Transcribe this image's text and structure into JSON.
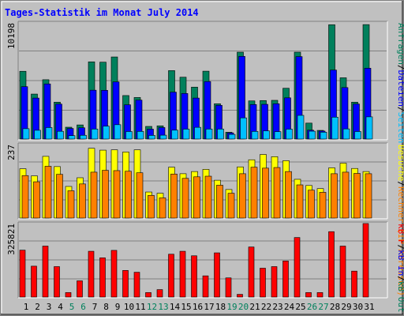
{
  "title": "Tages-Statistik im Monat July 2014",
  "colors": {
    "title": "#0000ff",
    "weekday_label": "#000000",
    "weekend_label": "#00805c",
    "anfragen": "#00805c",
    "dateien": "#0000ff",
    "seiten": "#00c0ff",
    "rechner": "#ff8000",
    "besuche": "#ffff00",
    "kb_f": "#ff0000",
    "kb_in": "#0000ff",
    "kb_out": "#00805c"
  },
  "chart_data": [
    {
      "type": "bar",
      "name": "panel-requests",
      "ytick": "10198",
      "ylim": [
        0,
        10198
      ],
      "legend": [
        {
          "text": "Anfragen",
          "color": "#00805c"
        },
        {
          "text": "/",
          "color": "#000000"
        },
        {
          "text": "Dateien",
          "color": "#0000ff"
        },
        {
          "text": "/",
          "color": "#000000"
        },
        {
          "text": "Seiten",
          "color": "#00c0ff"
        }
      ],
      "categories": [
        "1",
        "2",
        "3",
        "4",
        "5",
        "6",
        "7",
        "8",
        "9",
        "10",
        "11",
        "12",
        "13",
        "14",
        "15",
        "16",
        "17",
        "18",
        "19",
        "20",
        "21",
        "22",
        "23",
        "24",
        "25",
        "26",
        "27",
        "28",
        "29",
        "30",
        "31"
      ],
      "series": [
        {
          "name": "Anfragen",
          "values": [
            5950,
            3950,
            5210,
            3240,
            1040,
            1240,
            6780,
            6750,
            7210,
            3820,
            3650,
            1110,
            1160,
            6010,
            5430,
            4560,
            5960,
            3100,
            600,
            7630,
            3350,
            3380,
            3400,
            4460,
            7630,
            1400,
            760,
            10040,
            5380,
            3240,
            10050
          ]
        },
        {
          "name": "Dateien",
          "values": [
            4600,
            3600,
            4840,
            3070,
            930,
            990,
            4290,
            4280,
            5020,
            3010,
            3420,
            870,
            1010,
            4120,
            4000,
            3600,
            5050,
            2960,
            540,
            7260,
            3030,
            3050,
            3100,
            3620,
            7240,
            780,
            700,
            6060,
            4520,
            3080,
            6220
          ]
        },
        {
          "name": "Seiten",
          "values": [
            910,
            770,
            1010,
            680,
            300,
            330,
            880,
            1130,
            1260,
            660,
            670,
            320,
            340,
            780,
            870,
            1030,
            880,
            880,
            410,
            1860,
            670,
            720,
            650,
            870,
            2080,
            690,
            600,
            1920,
            890,
            660,
            1950
          ]
        }
      ]
    },
    {
      "type": "bar",
      "name": "panel-visits",
      "ytick": "237",
      "ylim": [
        0,
        237
      ],
      "legend": [
        {
          "text": "Besuche",
          "color": "#ffff00"
        },
        {
          "text": "/",
          "color": "#000000"
        },
        {
          "text": "Rechner (IP-Adressen)",
          "color": "#ff8000"
        }
      ],
      "categories": [
        "1",
        "2",
        "3",
        "4",
        "5",
        "6",
        "7",
        "8",
        "9",
        "10",
        "11",
        "12",
        "13",
        "14",
        "15",
        "16",
        "17",
        "18",
        "19",
        "20",
        "21",
        "22",
        "23",
        "24",
        "25",
        "26",
        "27",
        "28",
        "29",
        "30",
        "31"
      ],
      "series": [
        {
          "name": "Besuche",
          "values": [
            159,
            136,
            199,
            166,
            102,
            130,
            225,
            219,
            220,
            213,
            220,
            84,
            80,
            164,
            143,
            150,
            157,
            122,
            92,
            165,
            188,
            205,
            198,
            185,
            125,
            105,
            95,
            162,
            177,
            160,
            150
          ]
        },
        {
          "name": "Rechner (IP-Adressen)",
          "values": [
            137,
            117,
            167,
            141,
            88,
            110,
            148,
            154,
            153,
            151,
            146,
            73,
            65,
            142,
            128,
            133,
            135,
            106,
            80,
            143,
            164,
            161,
            163,
            150,
            107,
            90,
            83,
            143,
            148,
            144,
            143
          ]
        }
      ]
    },
    {
      "type": "bar",
      "name": "panel-traffic",
      "ytick": "325821",
      "ylim": [
        0,
        325821
      ],
      "legend": [
        {
          "text": "kB F",
          "color": "#ff0000"
        },
        {
          "text": "/",
          "color": "#000000"
        },
        {
          "text": "kB In",
          "color": "#0000ff"
        },
        {
          "text": "/",
          "color": "#000000"
        },
        {
          "text": "kB Out",
          "color": "#00805c"
        }
      ],
      "categories": [
        "1",
        "2",
        "3",
        "4",
        "5",
        "6",
        "7",
        "8",
        "9",
        "10",
        "11",
        "12",
        "13",
        "14",
        "15",
        "16",
        "17",
        "18",
        "19",
        "20",
        "21",
        "22",
        "23",
        "24",
        "25",
        "26",
        "27",
        "28",
        "29",
        "30",
        "31"
      ],
      "series": [
        {
          "name": "kB F",
          "values": [
            208000,
            137000,
            226000,
            135000,
            20000,
            72000,
            203000,
            174000,
            207000,
            118000,
            110000,
            20000,
            33000,
            190000,
            203000,
            183000,
            94000,
            196000,
            85000,
            12000,
            222000,
            128000,
            135000,
            160000,
            264000,
            20000,
            20000,
            290000,
            226000,
            115000,
            326000
          ]
        }
      ]
    }
  ],
  "weekend_days": [
    "5",
    "6",
    "12",
    "13",
    "19",
    "20",
    "26",
    "27"
  ]
}
